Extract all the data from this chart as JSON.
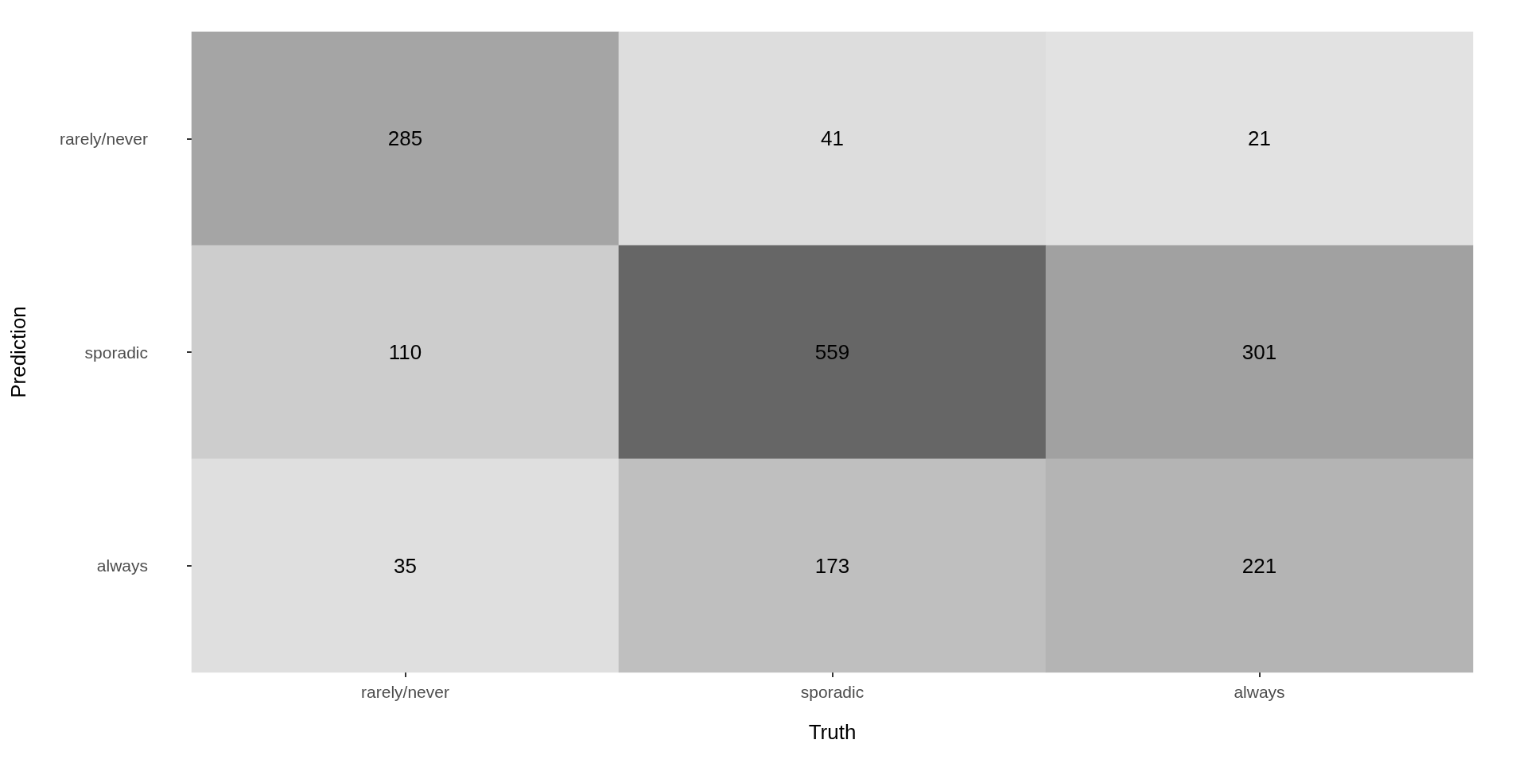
{
  "chart_data": {
    "type": "heatmap",
    "xlabel": "Truth",
    "ylabel": "Prediction",
    "categories": [
      "rarely/never",
      "sporadic",
      "always"
    ],
    "y_categories": [
      "rarely/never",
      "sporadic",
      "always"
    ],
    "cells": [
      [
        285,
        41,
        21
      ],
      [
        110,
        559,
        301
      ],
      [
        35,
        173,
        221
      ]
    ],
    "data_labels": true
  }
}
